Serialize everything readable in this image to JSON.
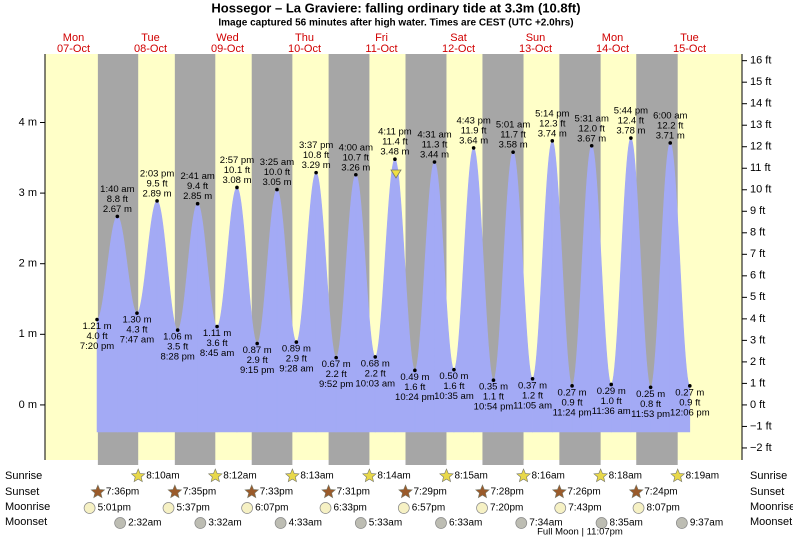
{
  "chart_data": {
    "type": "tide",
    "title": "Hossegor – La Graviere: falling  ordinary tide at 3.3m (10.8ft)",
    "subtitle": "Image captured 56 minutes after high water. Times are CEST (UTC +2.0hrs)",
    "ylim": [
      -0.78,
      4.97
    ],
    "yticks": [
      {
        "value": 0,
        "label": "0 m"
      },
      {
        "value": 1,
        "label": "1 m"
      },
      {
        "value": 2,
        "label": "2 m"
      },
      {
        "value": 3,
        "label": "3 m"
      },
      {
        "value": 4,
        "label": "4 m"
      }
    ],
    "y2lim": [
      -2.56,
      16.31
    ],
    "y2ticks": [
      {
        "value": -2,
        "label": "−2 ft"
      },
      {
        "value": -1,
        "label": "−1 ft"
      },
      {
        "value": 0,
        "label": "0 ft"
      },
      {
        "value": 1,
        "label": "1 ft"
      },
      {
        "value": 2,
        "label": "2 ft"
      },
      {
        "value": 3,
        "label": "3 ft"
      },
      {
        "value": 4,
        "label": "4 ft"
      },
      {
        "value": 5,
        "label": "5 ft"
      },
      {
        "value": 6,
        "label": "6 ft"
      },
      {
        "value": 7,
        "label": "7 ft"
      },
      {
        "value": 8,
        "label": "8 ft"
      },
      {
        "value": 9,
        "label": "9 ft"
      },
      {
        "value": 10,
        "label": "10 ft"
      },
      {
        "value": 11,
        "label": "11 ft"
      },
      {
        "value": 12,
        "label": "12 ft"
      },
      {
        "value": 13,
        "label": "13 ft"
      },
      {
        "value": 14,
        "label": "14 ft"
      },
      {
        "value": 15,
        "label": "15 ft"
      },
      {
        "value": 16,
        "label": "16 ft"
      }
    ],
    "color": "#a3aaf5",
    "row_labels": [
      "Sunrise",
      "Sunset",
      "Moonrise",
      "Moonset"
    ],
    "moon_phase": "Full Moon | 11:07pm",
    "days": [
      {
        "dow": "Mon",
        "date": "07-Oct",
        "sunrise": null,
        "sunset": "7:36pm",
        "moonrise": "5:01pm",
        "moonset": null,
        "tides": [
          {
            "time": "7:20 pm",
            "height_m": 1.21,
            "height_m_label": "1.21 m",
            "height_ft_label": "4.0 ft"
          }
        ]
      },
      {
        "dow": "Tue",
        "date": "08-Oct",
        "sunrise": "8:10am",
        "sunset": "7:35pm",
        "moonrise": "5:37pm",
        "moonset": "2:32am",
        "tides": [
          {
            "time": "1:40 am",
            "height_m": 2.67,
            "height_m_label": "2.67 m",
            "height_ft_label": "8.8 ft"
          },
          {
            "time": "7:47 am",
            "height_m": 1.3,
            "height_m_label": "1.30 m",
            "height_ft_label": "4.3 ft"
          },
          {
            "time": "2:03 pm",
            "height_m": 2.89,
            "height_m_label": "2.89 m",
            "height_ft_label": "9.5 ft"
          },
          {
            "time": "8:28 pm",
            "height_m": 1.06,
            "height_m_label": "1.06 m",
            "height_ft_label": "3.5 ft"
          }
        ]
      },
      {
        "dow": "Wed",
        "date": "09-Oct",
        "sunrise": "8:12am",
        "sunset": "7:33pm",
        "moonrise": "6:07pm",
        "moonset": "3:32am",
        "tides": [
          {
            "time": "2:41 am",
            "height_m": 2.85,
            "height_m_label": "2.85 m",
            "height_ft_label": "9.4 ft"
          },
          {
            "time": "8:45 am",
            "height_m": 1.11,
            "height_m_label": "1.11 m",
            "height_ft_label": "3.6 ft"
          },
          {
            "time": "2:57 pm",
            "height_m": 3.08,
            "height_m_label": "3.08 m",
            "height_ft_label": "10.1 ft"
          },
          {
            "time": "9:15 pm",
            "height_m": 0.87,
            "height_m_label": "0.87 m",
            "height_ft_label": "2.9 ft"
          }
        ]
      },
      {
        "dow": "Thu",
        "date": "10-Oct",
        "sunrise": "8:13am",
        "sunset": "7:31pm",
        "moonrise": "6:33pm",
        "moonset": "4:33am",
        "tides": [
          {
            "time": "3:25 am",
            "height_m": 3.05,
            "height_m_label": "3.05 m",
            "height_ft_label": "10.0 ft"
          },
          {
            "time": "9:28 am",
            "height_m": 0.89,
            "height_m_label": "0.89 m",
            "height_ft_label": "2.9 ft"
          },
          {
            "time": "3:37 pm",
            "height_m": 3.29,
            "height_m_label": "3.29 m",
            "height_ft_label": "10.8 ft"
          },
          {
            "time": "9:52 pm",
            "height_m": 0.67,
            "height_m_label": "0.67 m",
            "height_ft_label": "2.2 ft"
          }
        ]
      },
      {
        "dow": "Fri",
        "date": "11-Oct",
        "sunrise": "8:14am",
        "sunset": "7:29pm",
        "moonrise": "6:57pm",
        "moonset": "5:33am",
        "tides": [
          {
            "time": "4:00 am",
            "height_m": 3.26,
            "height_m_label": "3.26 m",
            "height_ft_label": "10.7 ft"
          },
          {
            "time": "10:03 am",
            "height_m": 0.68,
            "height_m_label": "0.68 m",
            "height_ft_label": "2.2 ft"
          },
          {
            "time": "4:11 pm",
            "height_m": 3.48,
            "height_m_label": "3.48 m",
            "height_ft_label": "11.4 ft"
          },
          {
            "time": "10:24 pm",
            "height_m": 0.49,
            "height_m_label": "0.49 m",
            "height_ft_label": "1.6 ft"
          }
        ]
      },
      {
        "dow": "Sat",
        "date": "12-Oct",
        "sunrise": "8:15am",
        "sunset": "7:28pm",
        "moonrise": "7:20pm",
        "moonset": "6:33am",
        "tides": [
          {
            "time": "4:31 am",
            "height_m": 3.44,
            "height_m_label": "3.44 m",
            "height_ft_label": "11.3 ft"
          },
          {
            "time": "10:35 am",
            "height_m": 0.5,
            "height_m_label": "0.50 m",
            "height_ft_label": "1.6 ft"
          },
          {
            "time": "4:43 pm",
            "height_m": 3.64,
            "height_m_label": "3.64 m",
            "height_ft_label": "11.9 ft"
          },
          {
            "time": "10:54 pm",
            "height_m": 0.35,
            "height_m_label": "0.35 m",
            "height_ft_label": "1.1 ft"
          }
        ]
      },
      {
        "dow": "Sun",
        "date": "13-Oct",
        "sunrise": "8:16am",
        "sunset": "7:26pm",
        "moonrise": "7:43pm",
        "moonset": "7:34am",
        "tides": [
          {
            "time": "5:01 am",
            "height_m": 3.58,
            "height_m_label": "3.58 m",
            "height_ft_label": "11.7 ft"
          },
          {
            "time": "11:05 am",
            "height_m": 0.37,
            "height_m_label": "0.37 m",
            "height_ft_label": "1.2 ft"
          },
          {
            "time": "5:14 pm",
            "height_m": 3.74,
            "height_m_label": "3.74 m",
            "height_ft_label": "12.3 ft"
          },
          {
            "time": "11:24 pm",
            "height_m": 0.27,
            "height_m_label": "0.27 m",
            "height_ft_label": "0.9 ft"
          }
        ]
      },
      {
        "dow": "Mon",
        "date": "14-Oct",
        "sunrise": "8:18am",
        "sunset": "7:24pm",
        "moonrise": "8:07pm",
        "moonset": "8:35am",
        "tides": [
          {
            "time": "5:31 am",
            "height_m": 3.67,
            "height_m_label": "3.67 m",
            "height_ft_label": "12.0 ft"
          },
          {
            "time": "11:36 am",
            "height_m": 0.29,
            "height_m_label": "0.29 m",
            "height_ft_label": "1.0 ft"
          },
          {
            "time": "5:44 pm",
            "height_m": 3.78,
            "height_m_label": "3.78 m",
            "height_ft_label": "12.4 ft"
          },
          {
            "time": "11:53 pm",
            "height_m": 0.25,
            "height_m_label": "0.25 m",
            "height_ft_label": "0.8 ft"
          }
        ]
      },
      {
        "dow": "Tue",
        "date": "15-Oct",
        "sunrise": "8:19am",
        "sunset": null,
        "moonrise": null,
        "moonset": "9:37am",
        "tides": [
          {
            "time": "6:00 am",
            "height_m": 3.71,
            "height_m_label": "3.71 m",
            "height_ft_label": "12.2 ft"
          },
          {
            "time": "12:06 pm",
            "height_m": 0.27,
            "height_m_label": "0.27 m",
            "height_ft_label": "0.9 ft"
          }
        ]
      }
    ]
  }
}
